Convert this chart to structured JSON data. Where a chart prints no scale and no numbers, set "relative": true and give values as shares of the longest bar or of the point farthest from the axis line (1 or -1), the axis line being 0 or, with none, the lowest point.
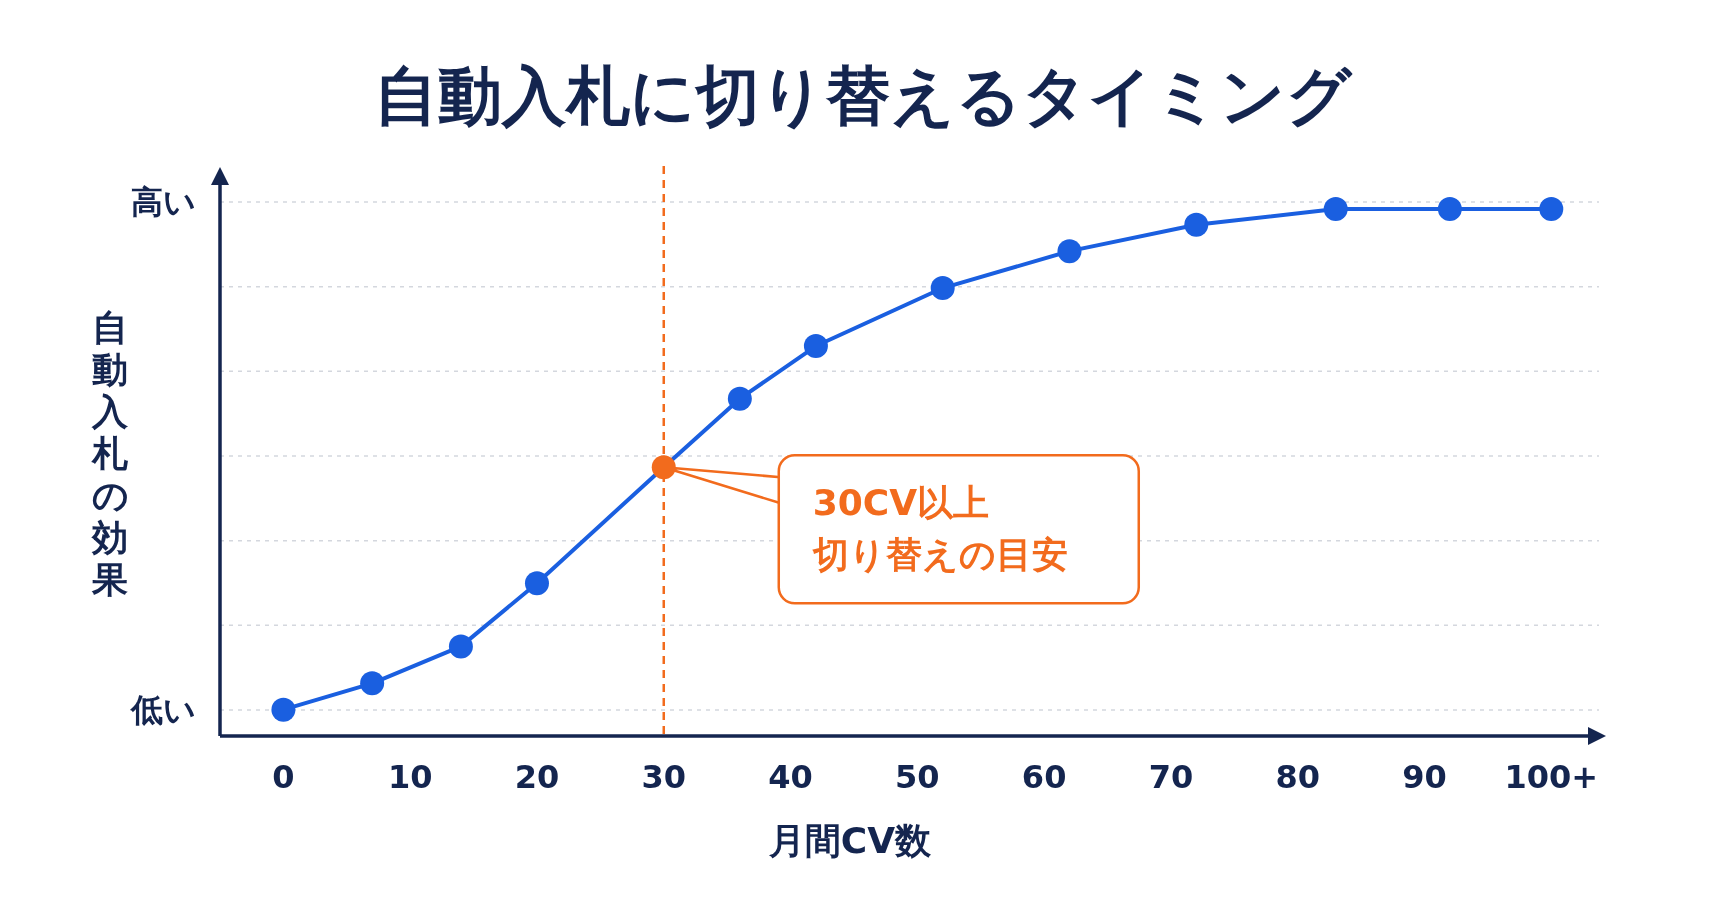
{
  "chart_data": {
    "type": "line",
    "title": "自動入札に切り替えるタイミング",
    "xlabel": "月間CV数",
    "ylabel": "自動入札の効果",
    "x": [
      0,
      7,
      14,
      20,
      30,
      36,
      42,
      52,
      62,
      72,
      83,
      92,
      100
    ],
    "series": [
      {
        "color": "#1a5fe0",
        "colors": [
          "#1a5fe0",
          "#1a5fe0",
          "#1a5fe0",
          "#1a5fe0",
          "#f26b1d",
          "#1a5fe0",
          "#1a5fe0",
          "#1a5fe0",
          "#1a5fe0",
          "#1a5fe0",
          "#1a5fe0",
          "#1a5fe0",
          "#1a5fe0"
        ],
        "values": [
          0.05,
          0.1,
          0.17,
          0.29,
          0.51,
          0.64,
          0.74,
          0.85,
          0.92,
          0.97,
          1.0,
          1.0,
          1.0
        ]
      }
    ],
    "relative": true,
    "xlim": [
      -5,
      104
    ],
    "xticks": [
      0,
      10,
      20,
      30,
      40,
      50,
      60,
      70,
      80,
      90,
      {
        "value": 100,
        "label": "100+"
      }
    ],
    "grid": "y",
    "marker": "circle",
    "line_style": "solid",
    "ref_lines": [
      {
        "axis": "x",
        "value": 30,
        "color": "#f26b1d",
        "line_style": "dashed"
      }
    ],
    "annotations": [
      "低い",
      "高い",
      {
        "text": "30CV以上",
        "x": 30,
        "y": 0.51
      },
      {
        "text": "切り替えの目安",
        "x": 30,
        "y": 0.51
      }
    ]
  }
}
